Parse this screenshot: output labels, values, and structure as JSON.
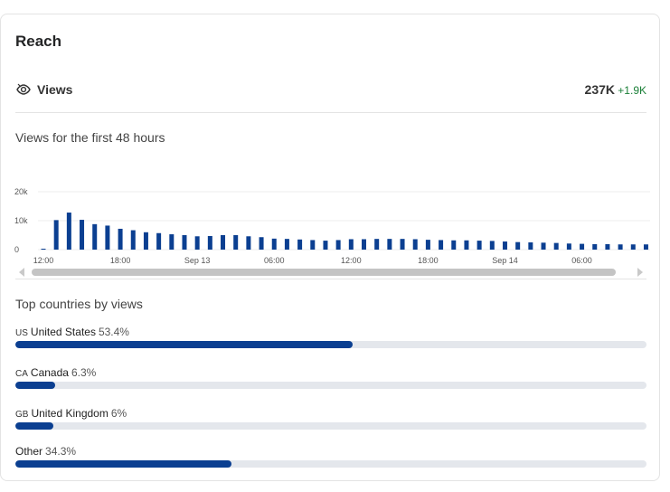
{
  "reach": {
    "title": "Reach",
    "views": {
      "icon": "views-eye-icon",
      "label": "Views",
      "total": "237K",
      "delta": "+1.9K",
      "delta_color": "#1a7f37"
    },
    "chart_section_title": "Views for the first 48 hours",
    "countries_section_title": "Top countries by views",
    "countries": [
      {
        "code": "US",
        "name": "United States",
        "percent_label": "53.4%",
        "value": 53.4
      },
      {
        "code": "CA",
        "name": "Canada",
        "percent_label": "6.3%",
        "value": 6.3
      },
      {
        "code": "GB",
        "name": "United Kingdom",
        "percent_label": "6%",
        "value": 6
      },
      {
        "code": "",
        "name": "Other",
        "percent_label": "34.3%",
        "value": 34.3
      }
    ],
    "bar_color": "#0b3f91",
    "track_color": "#e4e7ec"
  },
  "chart_data": {
    "type": "bar",
    "ylim": [
      0,
      20000
    ],
    "y_ticks": [
      {
        "value": 0,
        "label": "0"
      },
      {
        "value": 10000,
        "label": "10k"
      },
      {
        "value": 20000,
        "label": "20k"
      }
    ],
    "x_tick_labels": [
      {
        "index": 0,
        "label": "12:00"
      },
      {
        "index": 6,
        "label": "18:00"
      },
      {
        "index": 12,
        "label": "Sep 13"
      },
      {
        "index": 18,
        "label": "06:00"
      },
      {
        "index": 24,
        "label": "12:00"
      },
      {
        "index": 30,
        "label": "18:00"
      },
      {
        "index": 36,
        "label": "Sep 14"
      },
      {
        "index": 42,
        "label": "06:00"
      }
    ],
    "values": [
      200,
      10200,
      12800,
      10300,
      8800,
      8300,
      7200,
      6700,
      6000,
      5700,
      5300,
      5000,
      4600,
      4700,
      5000,
      5000,
      4600,
      4300,
      3800,
      3700,
      3500,
      3300,
      3100,
      3300,
      3600,
      3600,
      3700,
      3700,
      3700,
      3600,
      3400,
      3300,
      3200,
      3200,
      3100,
      3000,
      2800,
      2600,
      2500,
      2400,
      2300,
      2100,
      2000,
      1900,
      1900,
      1800,
      1800,
      1800
    ],
    "bar_color": "#0b3f91"
  }
}
